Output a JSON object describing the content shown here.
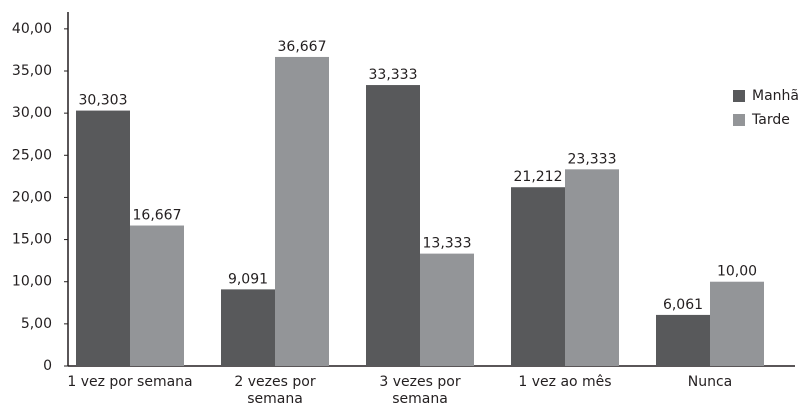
{
  "chart_data": {
    "type": "bar",
    "categories": [
      "1 vez por semana",
      "2 vezes por semana",
      "3 vezes por semana",
      "1 vez ao mês",
      "Nunca"
    ],
    "series": [
      {
        "name": "Manhã",
        "color": "#58595b",
        "values": [
          30.303,
          9.091,
          33.333,
          21.212,
          6.061
        ],
        "value_labels": [
          "30,303",
          "9,091",
          "33,333",
          "21,212",
          "6,061"
        ]
      },
      {
        "name": "Tarde",
        "color": "#939598",
        "values": [
          16.667,
          36.667,
          13.333,
          23.333,
          10.0
        ],
        "value_labels": [
          "16,667",
          "36,667",
          "13,333",
          "23,333",
          "10,00"
        ]
      }
    ],
    "ylim": [
      0,
      42
    ],
    "yticks": [
      0,
      {
        "value": 5,
        "label": "5,00"
      },
      {
        "value": 10,
        "label": "10,00"
      },
      {
        "value": 15,
        "label": "15,00"
      },
      {
        "value": 20,
        "label": "20,00"
      },
      {
        "value": 25,
        "label": "25,00"
      },
      {
        "value": 30,
        "label": "30,00"
      },
      {
        "value": 35,
        "label": "35,00"
      },
      {
        "value": 40,
        "label": "40,00"
      }
    ],
    "grid": false,
    "legend": "right"
  }
}
